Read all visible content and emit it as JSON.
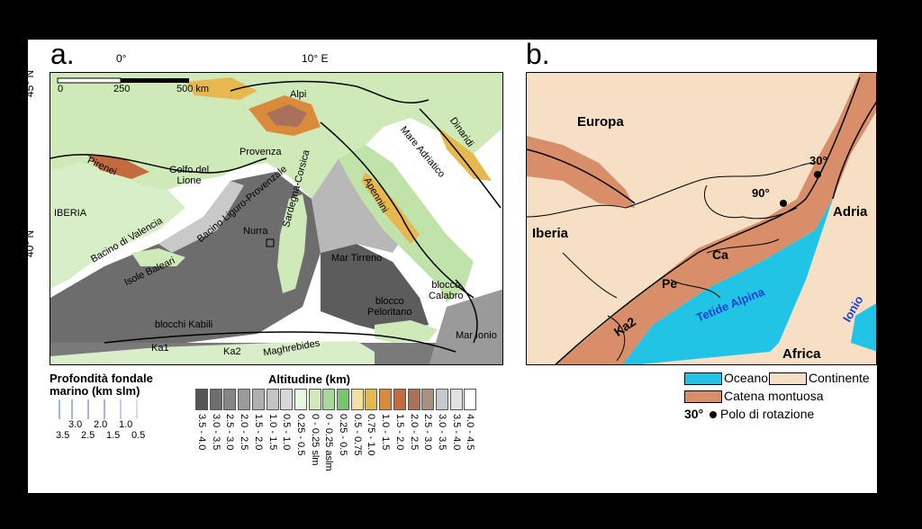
{
  "panel_a": {
    "letter": "a.",
    "longitudes": [
      "0°",
      "10° E"
    ],
    "latitudes": [
      "45° N",
      "40° N"
    ],
    "scalebar": {
      "labels": [
        "0",
        "250",
        "500 km"
      ]
    },
    "places": {
      "alpi": "Alpi",
      "provenza": "Provenza",
      "golfo": "Golfo del\nLione",
      "pirenei": "Pirenei",
      "iberia": "IBERIA",
      "valencia": "Bacino di Valencia",
      "baleari": "Isole Baleari",
      "ligure": "Bacino Liguro-Provenzale",
      "nurra": "Nurra",
      "sardegna": "Sardegna-Corsica",
      "adriatico": "Mare Adriatico",
      "dinaridi": "Dinaridi",
      "apennini": "Apennini",
      "tirreno": "Mar Tirreno",
      "calabro": "blocco\nCalabro",
      "peloritano": "blocco\nPeloritano",
      "ionio": "Mar Ionio",
      "kabili": "blocchi Kabili",
      "ka1": "Ka1",
      "ka2": "Ka2",
      "maghrebides": "Maghrebides"
    },
    "depth_legend": {
      "title": "Profondità fondale\nmarino (km slm)",
      "top_labels": [
        "3.0",
        "2.0",
        "1.0"
      ],
      "bottom_labels": [
        "3.5",
        "2.5",
        "1.5",
        "0.5"
      ]
    },
    "altitude_legend": {
      "title": "Altitudine (km)",
      "colors": [
        "#555555",
        "#6e6e6e",
        "#858585",
        "#9a9a9a",
        "#afafaf",
        "#c4c4c4",
        "#d8d8d8",
        "#eaf6e2",
        "#cfeab8",
        "#a8d89b",
        "#7bc46f",
        "#f2e0a0",
        "#e8b850",
        "#d98a3a",
        "#c46a3f",
        "#a9715a",
        "#a8927f",
        "#c8c8c8",
        "#e2e2e2",
        "#ffffff"
      ],
      "labels": [
        "3.5 - 4.0",
        "3.0 - 3.5",
        "2.5 - 3.0",
        "2.0 - 2.5",
        "1.5 - 2.0",
        "1.0 - 1.5",
        "0.5 - 1.0",
        "0.25 - 0.5",
        "0 - 0.25 slm",
        "0 - 0.25 aslm",
        "0.25 - 0.5",
        "0.5 - 0.75",
        "0.75 - 1.0",
        "1.0 - 1.5",
        "1.5 - 2.0",
        "2.0 - 2.5",
        "2.5 - 3.0",
        "3.0 - 3.5",
        "3.5 - 4.0",
        "4.0 - 4.5"
      ]
    }
  },
  "panel_b": {
    "letter": "b.",
    "places": {
      "europa": "Europa",
      "iberia": "Iberia",
      "adria": "Adria",
      "africa": "Africa",
      "ionio": "Ionio",
      "tetide": "Tetide Alpina",
      "ca": "Ca",
      "pe": "Pe",
      "ka2": "Ka2",
      "pole30": "30°",
      "pole90": "90°"
    },
    "colors": {
      "ocean": "#22c4e6",
      "continent": "#f6dfc4",
      "mountain": "#d98e6a"
    },
    "legend": {
      "ocean": "Oceano",
      "continent": "Continente",
      "mountain": "Catena montuosa",
      "pole_value": "30°",
      "pole": "Polo di rotazione"
    }
  }
}
